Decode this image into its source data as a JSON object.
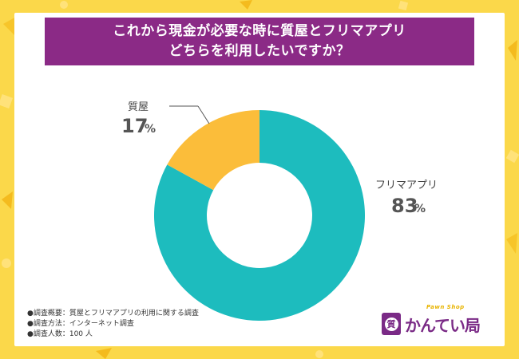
{
  "title": {
    "line1": "これから現金が必要な時に質屋とフリマアプリ",
    "line2": "どちらを利用したいですか？"
  },
  "colors": {
    "background": "#fbd84a",
    "banner": "#8b2a86",
    "series_primary": "#1dbcbe",
    "series_secondary": "#fbbd3a",
    "logo": "#7a2a86"
  },
  "chart_data": {
    "type": "pie",
    "donut": true,
    "title": "これから現金が必要な時に質屋とフリマアプリどちらを利用したいですか？",
    "slices": [
      {
        "label": "フリマアプリ",
        "value": 83,
        "color": "#1dbcbe"
      },
      {
        "label": "質屋",
        "value": 17,
        "color": "#fbbd3a"
      }
    ],
    "unit": "%"
  },
  "labels": {
    "furima": {
      "name": "フリマアプリ",
      "value": "83",
      "unit": "%"
    },
    "shichiya": {
      "name": "質屋",
      "value": "17",
      "unit": "%"
    }
  },
  "notes": [
    "●調査概要：質屋とフリマアプリの利用に関する調査",
    "●調査方法：インターネット調査",
    "●調査人数：100 人"
  ],
  "logo": {
    "sub": "Pawn Shop",
    "main": "かんてい局",
    "badge": "質",
    "icon": "pawn-shop-logo-icon"
  }
}
